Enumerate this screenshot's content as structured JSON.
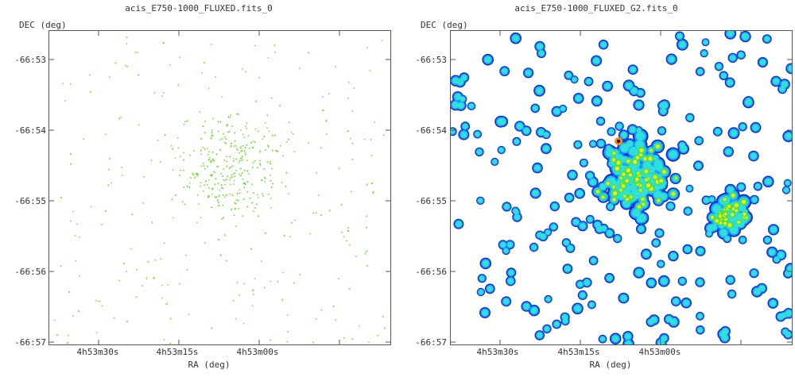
{
  "left_panel": {
    "title": "acis_E750-1000_FLUXED.fits_0",
    "ylabel": "DEC (deg)",
    "xlabel": "RA (deg)",
    "yticks": [
      "-66:53",
      "-66:54",
      "-66:55",
      "-66:56",
      "-66:57"
    ],
    "xticks": [
      "4h53m30s",
      "4h53m15s",
      "4h53m00s"
    ]
  },
  "right_panel": {
    "title": "acis_E750-1000_FLUXED_G2.fits_0",
    "ylabel": "DEC (deg)",
    "xlabel": "RA (deg)",
    "yticks": [
      "-66:53",
      "-66:54",
      "-66:55",
      "-66:56",
      "-66:57"
    ],
    "xticks": [
      "4h53m30s",
      "4h53m15s",
      "4h53m00s"
    ]
  },
  "colors": {
    "event_green": "#66dd22",
    "map_low": "#1428c8",
    "map_mid": "#18a0ff",
    "map_cyan": "#30e0d8",
    "map_green": "#40e040",
    "map_yellow": "#f0f020",
    "map_orange": "#ff8c10",
    "map_peak": "#300000"
  }
}
